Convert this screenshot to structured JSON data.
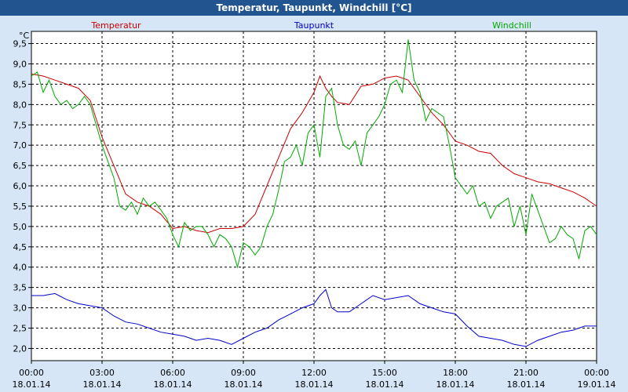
{
  "window": {
    "title": "Temperatur, Taupunkt, Windchill [°C]"
  },
  "chart_data": {
    "type": "line",
    "title": "Temperatur, Taupunkt, Windchill [°C]",
    "ylabel": "°C",
    "ylim": [
      1.7,
      9.8
    ],
    "xlim": [
      0,
      24
    ],
    "y_ticks": [
      "2,0",
      "2,5",
      "3,0",
      "3,5",
      "4,0",
      "4,5",
      "5,0",
      "5,5",
      "6,0",
      "6,5",
      "7,0",
      "7,5",
      "8,0",
      "8,5",
      "9,0",
      "9,5"
    ],
    "y_tick_values": [
      2.0,
      2.5,
      3.0,
      3.5,
      4.0,
      4.5,
      5.0,
      5.5,
      6.0,
      6.5,
      7.0,
      7.5,
      8.0,
      8.5,
      9.0,
      9.5
    ],
    "x_ticks": [
      {
        "time": "00:00",
        "date": "18.01.14"
      },
      {
        "time": "03:00",
        "date": "18.01.14"
      },
      {
        "time": "06:00",
        "date": "18.01.14"
      },
      {
        "time": "09:00",
        "date": "18.01.14"
      },
      {
        "time": "12:00",
        "date": "18.01.14"
      },
      {
        "time": "15:00",
        "date": "18.01.14"
      },
      {
        "time": "18:00",
        "date": "18.01.14"
      },
      {
        "time": "21:00",
        "date": "18.01.14"
      },
      {
        "time": "00:00",
        "date": "19.01.14"
      }
    ],
    "x_tick_hours": [
      0,
      3,
      6,
      9,
      12,
      15,
      18,
      21,
      24
    ],
    "grid": true,
    "legend_placement": "top",
    "series": [
      {
        "name": "Temperatur",
        "color": "#cc0000",
        "x": [
          0,
          0.5,
          1,
          1.5,
          2,
          2.5,
          3,
          3.5,
          4,
          4.5,
          5,
          5.5,
          6,
          6.5,
          7,
          7.5,
          8,
          8.5,
          9,
          9.5,
          10,
          10.5,
          11,
          11.5,
          12,
          12.25,
          12.5,
          12.75,
          13,
          13.5,
          14,
          14.5,
          15,
          15.5,
          16,
          16.5,
          17,
          17.5,
          18,
          18.5,
          19,
          19.5,
          20,
          20.5,
          21,
          21.5,
          22,
          22.5,
          23,
          23.5,
          24
        ],
        "y": [
          8.75,
          8.7,
          8.6,
          8.5,
          8.4,
          8.1,
          7.2,
          6.5,
          5.8,
          5.6,
          5.5,
          5.3,
          4.95,
          5.0,
          4.9,
          4.85,
          4.95,
          4.95,
          5.0,
          5.3,
          6.0,
          6.7,
          7.4,
          7.8,
          8.3,
          8.7,
          8.4,
          8.2,
          8.05,
          8.0,
          8.45,
          8.5,
          8.65,
          8.7,
          8.6,
          8.2,
          7.8,
          7.5,
          7.1,
          7.0,
          6.85,
          6.8,
          6.5,
          6.3,
          6.2,
          6.1,
          6.05,
          5.95,
          5.85,
          5.7,
          5.5
        ]
      },
      {
        "name": "Taupunkt",
        "color": "#0000cc",
        "x": [
          0,
          0.5,
          1,
          1.5,
          2,
          2.5,
          3,
          3.5,
          4,
          4.5,
          5,
          5.5,
          6,
          6.5,
          7,
          7.5,
          8,
          8.5,
          9,
          9.5,
          10,
          10.5,
          11,
          11.5,
          12,
          12.25,
          12.5,
          12.75,
          13,
          13.5,
          14,
          14.5,
          15,
          15.5,
          16,
          16.5,
          17,
          17.5,
          18,
          18.5,
          19,
          19.5,
          20,
          20.5,
          21,
          21.5,
          22,
          22.5,
          23,
          23.5,
          24
        ],
        "y": [
          3.3,
          3.3,
          3.35,
          3.2,
          3.1,
          3.05,
          3.0,
          2.8,
          2.65,
          2.6,
          2.5,
          2.4,
          2.35,
          2.3,
          2.2,
          2.25,
          2.2,
          2.1,
          2.25,
          2.4,
          2.5,
          2.7,
          2.85,
          3.0,
          3.1,
          3.3,
          3.45,
          3.0,
          2.9,
          2.9,
          3.1,
          3.3,
          3.2,
          3.25,
          3.3,
          3.1,
          3.0,
          2.9,
          2.85,
          2.55,
          2.3,
          2.25,
          2.2,
          2.1,
          2.05,
          2.2,
          2.3,
          2.4,
          2.45,
          2.55,
          2.55
        ]
      },
      {
        "name": "Windchill",
        "color": "#00aa00",
        "x": [
          0,
          0.25,
          0.5,
          0.75,
          1,
          1.25,
          1.5,
          1.75,
          2,
          2.25,
          2.5,
          2.75,
          3,
          3.25,
          3.5,
          3.75,
          4,
          4.25,
          4.5,
          4.75,
          5,
          5.25,
          5.5,
          5.75,
          6,
          6.25,
          6.5,
          6.75,
          7,
          7.25,
          7.5,
          7.75,
          8,
          8.25,
          8.5,
          8.75,
          9,
          9.25,
          9.5,
          9.75,
          10,
          10.25,
          10.5,
          10.75,
          11,
          11.25,
          11.5,
          11.75,
          12,
          12.25,
          12.5,
          12.75,
          13,
          13.25,
          13.5,
          13.75,
          14,
          14.25,
          14.5,
          14.75,
          15,
          15.25,
          15.5,
          15.75,
          16,
          16.25,
          16.5,
          16.75,
          17,
          17.25,
          17.5,
          17.75,
          18,
          18.25,
          18.5,
          18.75,
          19,
          19.25,
          19.5,
          19.75,
          20,
          20.25,
          20.5,
          20.75,
          21,
          21.25,
          21.5,
          21.75,
          22,
          22.25,
          22.5,
          22.75,
          23,
          23.25,
          23.5,
          23.75,
          24
        ],
        "y": [
          8.7,
          8.8,
          8.3,
          8.6,
          8.2,
          8.0,
          8.1,
          7.9,
          8.0,
          8.2,
          8.0,
          7.5,
          7.0,
          6.6,
          6.2,
          5.5,
          5.4,
          5.6,
          5.3,
          5.7,
          5.5,
          5.6,
          5.4,
          5.2,
          4.8,
          4.5,
          5.1,
          4.9,
          5.0,
          5.0,
          4.8,
          4.5,
          4.8,
          4.7,
          4.5,
          4.0,
          4.6,
          4.5,
          4.3,
          4.5,
          5.0,
          5.3,
          5.9,
          6.6,
          6.7,
          7.0,
          6.5,
          7.3,
          7.5,
          6.7,
          8.2,
          8.4,
          7.5,
          7.0,
          6.9,
          7.1,
          6.5,
          7.3,
          7.5,
          7.7,
          8.0,
          8.5,
          8.6,
          8.3,
          9.6,
          8.6,
          8.3,
          7.6,
          7.9,
          7.8,
          7.7,
          7.0,
          6.2,
          6.0,
          5.8,
          6.0,
          5.5,
          5.6,
          5.2,
          5.5,
          5.6,
          5.7,
          5.0,
          5.5,
          4.8,
          5.8,
          5.4,
          5.0,
          4.6,
          4.7,
          5.0,
          4.8,
          4.7,
          4.2,
          4.9,
          5.0,
          4.8
        ]
      }
    ]
  }
}
